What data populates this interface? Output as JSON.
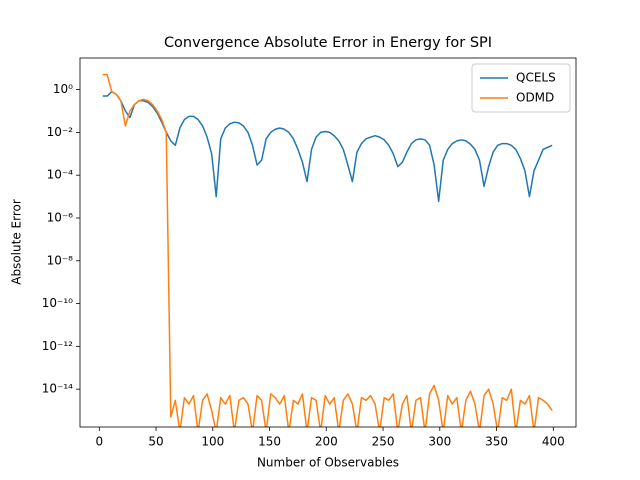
{
  "chart_data": {
    "type": "line",
    "title": "Convergence Absolute Error in Energy for SPI",
    "xlabel": "Number of Observables",
    "ylabel": "Absolute Error",
    "log_y": true,
    "legend": "upper right",
    "xlim": [
      -17,
      420
    ],
    "ylim": [
      1.7e-16,
      30
    ],
    "xticks": [
      0,
      50,
      100,
      150,
      200,
      250,
      300,
      350,
      400
    ],
    "yticks": [
      {
        "value": 1,
        "label": "10⁰"
      },
      {
        "value": 0.01,
        "label": "10⁻²"
      },
      {
        "value": 0.0001,
        "label": "10⁻⁴"
      },
      {
        "value": 1e-06,
        "label": "10⁻⁶"
      },
      {
        "value": 1e-08,
        "label": "10⁻⁸"
      },
      {
        "value": 1e-10,
        "label": "10⁻¹⁰"
      },
      {
        "value": 1e-12,
        "label": "10⁻¹²"
      },
      {
        "value": 1e-14,
        "label": "10⁻¹⁴"
      }
    ],
    "x": [
      3,
      7,
      11,
      15,
      19,
      23,
      27,
      31,
      35,
      39,
      43,
      47,
      51,
      55,
      59,
      63,
      67,
      71,
      75,
      79,
      83,
      87,
      91,
      95,
      99,
      103,
      107,
      111,
      115,
      119,
      123,
      127,
      131,
      135,
      139,
      143,
      147,
      151,
      155,
      159,
      163,
      167,
      171,
      175,
      179,
      183,
      187,
      191,
      195,
      199,
      203,
      207,
      211,
      215,
      219,
      223,
      227,
      231,
      235,
      239,
      243,
      247,
      251,
      255,
      259,
      263,
      267,
      271,
      275,
      279,
      283,
      287,
      291,
      295,
      299,
      303,
      307,
      311,
      315,
      319,
      323,
      327,
      331,
      335,
      339,
      343,
      347,
      351,
      355,
      359,
      363,
      367,
      371,
      375,
      379,
      383,
      387,
      391,
      395,
      399
    ],
    "series": [
      {
        "name": "QCELS",
        "color": "#1f77b4",
        "values": [
          0.5,
          0.5,
          0.8,
          0.6,
          0.3,
          0.1,
          0.05,
          0.2,
          0.3,
          0.3,
          0.25,
          0.16,
          0.08,
          0.03,
          0.01,
          0.004,
          0.0025,
          0.016,
          0.04,
          0.056,
          0.056,
          0.04,
          0.02,
          0.006,
          0.001,
          1e-05,
          0.005,
          0.016,
          0.025,
          0.03,
          0.028,
          0.02,
          0.01,
          0.0025,
          0.0003,
          0.0005,
          0.005,
          0.01,
          0.014,
          0.016,
          0.014,
          0.01,
          0.005,
          0.0016,
          0.0004,
          5e-05,
          0.0016,
          0.006,
          0.01,
          0.011,
          0.01,
          0.007,
          0.004,
          0.0016,
          0.0003,
          5e-05,
          0.0012,
          0.003,
          0.005,
          0.006,
          0.007,
          0.006,
          0.0045,
          0.0025,
          0.001,
          0.00025,
          0.0004,
          0.0012,
          0.003,
          0.0045,
          0.005,
          0.0045,
          0.0025,
          0.0003,
          6e-06,
          0.0005,
          0.0016,
          0.003,
          0.004,
          0.0045,
          0.004,
          0.0028,
          0.0016,
          0.0005,
          3e-05,
          0.00025,
          0.0012,
          0.0025,
          0.003,
          0.003,
          0.0025,
          0.0016,
          0.0006,
          0.00016,
          1e-05,
          0.00016,
          0.0005,
          0.0016,
          0.002,
          0.0025
        ]
      },
      {
        "name": "ODMD",
        "color": "#ff7f0e",
        "values": [
          5,
          5,
          0.8,
          0.6,
          0.3,
          0.02,
          0.1,
          0.2,
          0.3,
          0.35,
          0.3,
          0.2,
          0.1,
          0.04,
          0.01,
          5e-16,
          3e-15,
          1e-16,
          4e-15,
          2e-15,
          5e-15,
          1e-16,
          3e-15,
          6e-15,
          1e-15,
          1e-16,
          4e-15,
          2e-15,
          5e-15,
          1e-16,
          3e-15,
          4e-15,
          2e-15,
          1e-16,
          5e-15,
          3e-15,
          1e-16,
          6e-15,
          4e-15,
          2e-15,
          5e-15,
          1e-16,
          3e-15,
          2e-15,
          6e-15,
          1e-16,
          4e-15,
          3e-15,
          1e-16,
          5e-15,
          2e-15,
          4e-15,
          1e-16,
          3e-15,
          6e-15,
          2e-15,
          1e-16,
          4e-15,
          3e-15,
          5e-15,
          2e-15,
          1e-16,
          4e-15,
          3e-15,
          6e-15,
          1e-16,
          2e-15,
          5e-15,
          1e-16,
          3e-15,
          4e-15,
          1e-16,
          6e-15,
          1.5e-14,
          3e-15,
          1e-16,
          5e-15,
          2e-15,
          4e-15,
          1e-16,
          3e-15,
          8e-15,
          2e-15,
          1e-16,
          5e-15,
          1e-14,
          2e-15,
          1e-16,
          4e-15,
          3e-15,
          1e-14,
          1e-16,
          3e-15,
          2e-15,
          5e-15,
          1e-16,
          4e-15,
          3e-15,
          2e-15,
          1e-15
        ]
      }
    ]
  }
}
